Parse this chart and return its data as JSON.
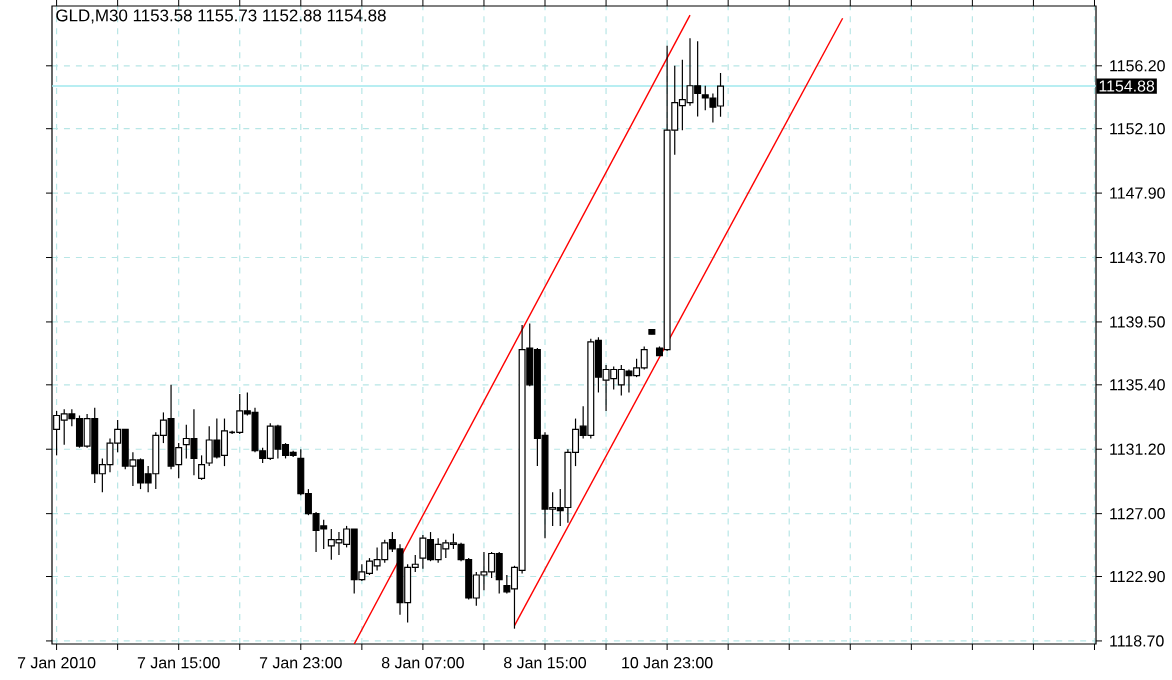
{
  "chart_data": {
    "type": "candlestick",
    "title": "GLD,M30  1153.58 1155.73 1152.88 1154.88",
    "categories": [
      "7 Jan 2010",
      null,
      null,
      null,
      null,
      null,
      null,
      null,
      null,
      null,
      null,
      null,
      null,
      null,
      null,
      null,
      "7 Jan 15:00",
      null,
      null,
      null,
      null,
      null,
      null,
      null,
      null,
      null,
      null,
      null,
      null,
      null,
      null,
      null,
      "7 Jan 23:00",
      null,
      null,
      null,
      null,
      null,
      null,
      null,
      null,
      null,
      null,
      null,
      null,
      null,
      null,
      null,
      "8 Jan 07:00",
      null,
      null,
      null,
      null,
      null,
      null,
      null,
      null,
      null,
      null,
      null,
      null,
      null,
      null,
      null,
      "8 Jan 15:00",
      null,
      null,
      null,
      null,
      null,
      null,
      null,
      null,
      null,
      null,
      null,
      null,
      null,
      null,
      null,
      "10 Jan 23:00",
      null,
      null,
      null,
      null,
      null,
      null,
      null,
      null,
      null,
      null,
      null,
      null,
      null,
      null,
      null,
      null,
      null,
      null,
      null,
      null,
      null,
      null,
      null,
      null,
      null,
      null,
      null,
      null,
      null,
      null,
      null,
      null,
      null,
      null,
      null,
      null,
      null,
      null,
      null,
      null,
      null,
      null,
      null,
      null,
      null,
      null,
      null,
      null,
      null,
      null,
      null,
      null,
      null,
      null,
      null,
      null
    ],
    "ohlc": [
      [
        1132.5,
        1133.7,
        1130.8,
        1133.4
      ],
      [
        1133.1,
        1133.8,
        1131.5,
        1133.5
      ],
      [
        1133.5,
        1133.8,
        1132.7,
        1133.2
      ],
      [
        1133.2,
        1133.4,
        1131.3,
        1131.4
      ],
      [
        1131.4,
        1133.5,
        1131.3,
        1133.2
      ],
      [
        1133.2,
        1133.9,
        1129.0,
        1129.6
      ],
      [
        1129.6,
        1130.6,
        1128.4,
        1130.2
      ],
      [
        1130.2,
        1131.9,
        1129.7,
        1131.6
      ],
      [
        1131.6,
        1133.1,
        1131.0,
        1132.5
      ],
      [
        1132.5,
        1132.5,
        1129.9,
        1130.1
      ],
      [
        1130.1,
        1131.0,
        1128.8,
        1130.5
      ],
      [
        1130.5,
        1130.6,
        1128.6,
        1129.0
      ],
      [
        1129.6,
        1130.1,
        1128.4,
        1129.0
      ],
      [
        1129.6,
        1132.3,
        1128.6,
        1132.1
      ],
      [
        1132.1,
        1133.6,
        1131.6,
        1133.1
      ],
      [
        1133.2,
        1135.4,
        1129.9,
        1130.1
      ],
      [
        1130.2,
        1131.6,
        1129.3,
        1131.3
      ],
      [
        1131.5,
        1132.8,
        1130.6,
        1131.9
      ],
      [
        1131.9,
        1133.8,
        1129.5,
        1130.6
      ],
      [
        1129.3,
        1130.8,
        1129.2,
        1130.2
      ],
      [
        1130.3,
        1132.7,
        1130.1,
        1131.8
      ],
      [
        1131.8,
        1133.2,
        1130.6,
        1130.7
      ],
      [
        1130.8,
        1133.2,
        1130.1,
        1132.4
      ],
      [
        1132.3,
        1132.4,
        1132.2,
        1132.3
      ],
      [
        1132.3,
        1134.8,
        1132.2,
        1133.7
      ],
      [
        1133.7,
        1134.9,
        1133.4,
        1133.5
      ],
      [
        1133.6,
        1133.9,
        1131.0,
        1131.1
      ],
      [
        1131.1,
        1131.3,
        1130.3,
        1130.6
      ],
      [
        1130.6,
        1132.9,
        1130.5,
        1132.7
      ],
      [
        1132.7,
        1132.8,
        1130.6,
        1131.2
      ],
      [
        1131.5,
        1131.6,
        1130.6,
        1130.8
      ],
      [
        1131.0,
        1131.1,
        1130.7,
        1130.8
      ],
      [
        1130.6,
        1131.2,
        1128.2,
        1128.3
      ],
      [
        1128.3,
        1128.6,
        1126.9,
        1127.0
      ],
      [
        1127.0,
        1127.1,
        1124.5,
        1125.9
      ],
      [
        1126.2,
        1126.6,
        1124.7,
        1126.0
      ],
      [
        1124.9,
        1126.0,
        1124.0,
        1125.3
      ],
      [
        1125.1,
        1125.8,
        1124.3,
        1125.3
      ],
      [
        1125.0,
        1126.2,
        1124.8,
        1126.0
      ],
      [
        1126.0,
        1126.0,
        1121.8,
        1122.7
      ],
      [
        1122.7,
        1123.7,
        1122.6,
        1123.2
      ],
      [
        1123.1,
        1124.1,
        1123.0,
        1123.9
      ],
      [
        1123.6,
        1124.8,
        1123.3,
        1124.0
      ],
      [
        1124.0,
        1125.3,
        1123.8,
        1125.1
      ],
      [
        1125.3,
        1125.8,
        1124.5,
        1124.7
      ],
      [
        1124.7,
        1125.0,
        1120.4,
        1121.2
      ],
      [
        1121.2,
        1123.7,
        1119.9,
        1123.5
      ],
      [
        1123.5,
        1124.3,
        1123.2,
        1123.7
      ],
      [
        1124.1,
        1125.6,
        1123.4,
        1125.4
      ],
      [
        1125.3,
        1125.8,
        1123.9,
        1124.0
      ],
      [
        1124.0,
        1125.4,
        1123.8,
        1125.0
      ],
      [
        1124.7,
        1125.3,
        1124.1,
        1125.1
      ],
      [
        1125.0,
        1125.7,
        1124.7,
        1125.1
      ],
      [
        1125.0,
        1125.1,
        1123.9,
        1124.0
      ],
      [
        1124.0,
        1124.1,
        1121.4,
        1121.5
      ],
      [
        1121.5,
        1123.2,
        1121.0,
        1123.0
      ],
      [
        1123.0,
        1124.5,
        1122.0,
        1123.2
      ],
      [
        1123.2,
        1124.5,
        1122.8,
        1124.4
      ],
      [
        1124.4,
        1124.5,
        1121.8,
        1122.7
      ],
      [
        1122.3,
        1123.0,
        1121.8,
        1121.9
      ],
      [
        1122.1,
        1123.6,
        1119.5,
        1123.5
      ],
      [
        1123.3,
        1139.3,
        1123.1,
        1137.7
      ],
      [
        1137.8,
        1139.4,
        1135.3,
        1135.4
      ],
      [
        1137.7,
        1137.8,
        1130.1,
        1131.9
      ],
      [
        1132.1,
        1132.3,
        1125.4,
        1127.3
      ],
      [
        1127.3,
        1128.4,
        1126.2,
        1127.4
      ],
      [
        1127.4,
        1128.6,
        1126.2,
        1127.2
      ],
      [
        1127.4,
        1131.2,
        1126.4,
        1131.0
      ],
      [
        1131.0,
        1133.2,
        1130.1,
        1132.5
      ],
      [
        1132.7,
        1134.0,
        1131.9,
        1132.1
      ],
      [
        1132.1,
        1138.4,
        1131.9,
        1138.2
      ],
      [
        1138.3,
        1138.5,
        1134.9,
        1135.9
      ],
      [
        1135.7,
        1136.7,
        1133.7,
        1136.4
      ],
      [
        1135.8,
        1136.6,
        1135.1,
        1136.4
      ],
      [
        1135.4,
        1136.7,
        1134.7,
        1136.4
      ],
      [
        1136.3,
        1136.4,
        1134.9,
        1136.0
      ],
      [
        1136.0,
        1137.1,
        1135.9,
        1136.5
      ],
      [
        1136.5,
        1137.9,
        1136.4,
        1137.7
      ],
      [
        1139.0,
        1139.0,
        1138.7,
        1138.7
      ],
      [
        1137.8,
        1137.9,
        1137.3,
        1137.3
      ],
      [
        1137.7,
        1157.5,
        1137.6,
        1152.0
      ],
      [
        1152.0,
        1156.2,
        1150.4,
        1153.8
      ],
      [
        1153.6,
        1156.6,
        1152.0,
        1154.0
      ],
      [
        1153.8,
        1158.0,
        1153.6,
        1154.9
      ],
      [
        1154.9,
        1157.8,
        1152.9,
        1154.4
      ],
      [
        1154.3,
        1154.9,
        1153.3,
        1154.1
      ],
      [
        1154.1,
        1154.4,
        1152.5,
        1153.5
      ],
      [
        1153.58,
        1155.73,
        1152.88,
        1154.88
      ],
      null,
      null,
      null,
      null,
      null,
      null,
      null,
      null,
      null,
      null,
      null,
      null,
      null,
      null,
      null,
      null,
      null,
      null,
      null,
      null,
      null,
      null,
      null,
      null,
      null,
      null,
      null,
      null,
      null,
      null,
      null,
      null,
      null,
      null,
      null,
      null,
      null,
      null,
      null,
      null,
      null,
      null,
      null,
      null,
      null,
      null,
      null,
      null,
      null
    ],
    "series": [
      {
        "type": "line",
        "color": "#ff0000",
        "values": [
          null,
          null,
          null,
          null,
          null,
          null,
          null,
          null,
          null,
          null,
          null,
          null,
          null,
          null,
          null,
          null,
          null,
          null,
          null,
          null,
          null,
          null,
          null,
          null,
          null,
          null,
          null,
          null,
          null,
          null,
          null,
          null,
          null,
          null,
          null,
          null,
          null,
          null,
          null,
          1118.5,
          null,
          null,
          null,
          null,
          null,
          null,
          null,
          null,
          null,
          null,
          null,
          null,
          null,
          null,
          null,
          null,
          null,
          null,
          null,
          null,
          null,
          null,
          null,
          null,
          null,
          null,
          null,
          null,
          null,
          null,
          null,
          null,
          null,
          null,
          null,
          null,
          null,
          null,
          null,
          null,
          null,
          null,
          null,
          1159.5,
          null,
          null,
          null,
          null,
          null,
          null,
          null,
          null,
          null,
          null,
          null,
          null,
          null,
          null,
          null,
          null,
          null,
          null,
          null,
          null,
          null,
          null,
          null,
          null,
          null,
          null,
          null,
          null,
          null,
          null,
          null,
          null,
          null,
          null,
          null,
          null,
          null,
          null,
          null,
          null,
          null,
          null,
          null,
          null,
          null,
          null,
          null,
          null,
          null,
          null,
          null,
          null,
          null
        ]
      },
      {
        "type": "line",
        "color": "#ff0000",
        "values": [
          null,
          null,
          null,
          null,
          null,
          null,
          null,
          null,
          null,
          null,
          null,
          null,
          null,
          null,
          null,
          null,
          null,
          null,
          null,
          null,
          null,
          null,
          null,
          null,
          null,
          null,
          null,
          null,
          null,
          null,
          null,
          null,
          null,
          null,
          null,
          null,
          null,
          null,
          null,
          null,
          null,
          null,
          null,
          null,
          null,
          null,
          null,
          null,
          null,
          null,
          null,
          null,
          null,
          null,
          null,
          null,
          null,
          null,
          null,
          null,
          1119.7,
          null,
          null,
          null,
          null,
          null,
          null,
          null,
          null,
          null,
          null,
          null,
          null,
          null,
          null,
          null,
          null,
          null,
          null,
          null,
          null,
          null,
          null,
          null,
          null,
          null,
          null,
          null,
          null,
          null,
          null,
          null,
          null,
          null,
          null,
          null,
          null,
          null,
          null,
          null,
          null,
          null,
          null,
          1159.3,
          null,
          null,
          null,
          null,
          null,
          null,
          null,
          null,
          null,
          null,
          null,
          null,
          null,
          null,
          null,
          null,
          null,
          null,
          null,
          null,
          null,
          null,
          null,
          null,
          null,
          null,
          null,
          null,
          null,
          null,
          null,
          null,
          null
        ]
      }
    ],
    "ylim": [
      1118.5,
      1160.1
    ],
    "yticks": [
      {
        "value": 1118.7,
        "label": "1118.70"
      },
      {
        "value": 1122.9,
        "label": "1122.90"
      },
      {
        "value": 1127.0,
        "label": "1127.00"
      },
      {
        "value": 1131.2,
        "label": "1131.20"
      },
      {
        "value": 1135.4,
        "label": "1135.40"
      },
      {
        "value": 1139.5,
        "label": "1139.50"
      },
      {
        "value": 1143.7,
        "label": "1143.70"
      },
      {
        "value": 1147.9,
        "label": "1147.90"
      },
      {
        "value": 1152.1,
        "label": "1152.10"
      },
      {
        "value": 1156.2,
        "label": "1156.20"
      }
    ],
    "ref_lines": [
      {
        "axis": "y",
        "value": 1154.88,
        "label": "1154.88",
        "color": "#a0e8ee"
      }
    ],
    "grid": true
  }
}
